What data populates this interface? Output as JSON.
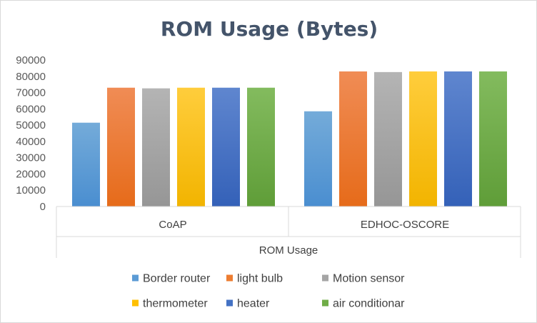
{
  "chart_data": {
    "type": "bar",
    "title": "ROM Usage (Bytes)",
    "group_label": "ROM Usage",
    "categories": [
      "CoAP",
      "EDHOC-OSCORE"
    ],
    "yticks": [
      "0",
      "10000",
      "20000",
      "30000",
      "40000",
      "50000",
      "60000",
      "70000",
      "80000",
      "90000"
    ],
    "ylim": [
      0,
      90000
    ],
    "series": [
      {
        "name": "Border router",
        "color": "#5b9bd5",
        "values": [
          51500,
          58500
        ]
      },
      {
        "name": "light bulb",
        "color": "#ed7d31",
        "values": [
          73000,
          83000
        ]
      },
      {
        "name": "Motion sensor",
        "color": "#a5a5a5",
        "values": [
          72600,
          82600
        ]
      },
      {
        "name": "thermometer",
        "color": "#ffc000",
        "values": [
          73000,
          83000
        ]
      },
      {
        "name": "heater",
        "color": "#4472c4",
        "values": [
          73000,
          83000
        ]
      },
      {
        "name": "air conditionar",
        "color": "#70ad47",
        "values": [
          73000,
          83000
        ]
      }
    ],
    "legend_position": "bottom",
    "grid": false
  }
}
